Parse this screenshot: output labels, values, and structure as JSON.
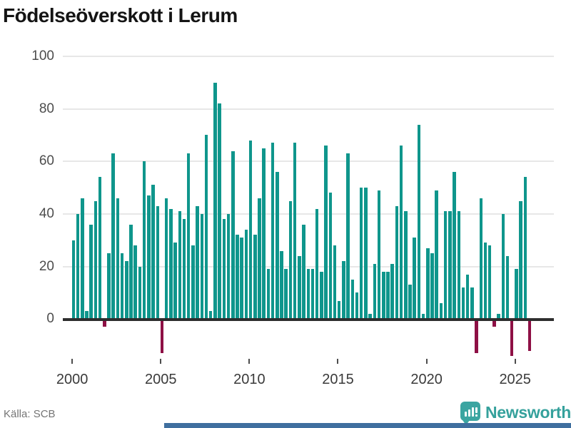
{
  "title": "Födelseöverskott i Lerum",
  "source": {
    "text": "Källa: SCB"
  },
  "brand": {
    "name": "Newsworthy",
    "color": "#35a19c",
    "icon": "bar-chart-pin-icon"
  },
  "colors": {
    "positive_bar": "#0f968c",
    "negative_bar": "#8e1045",
    "axis_line": "#2e2e2e",
    "gridline": "#e7e7e7",
    "bottom_strip": "#3f6f9f"
  },
  "chart_data": {
    "type": "bar",
    "title": "Födelseöverskott i Lerum",
    "xlabel": "",
    "ylabel": "",
    "frequency": "quarterly",
    "start_year": 2000,
    "start_quarter": 1,
    "x_tick_labels": [
      "2000",
      "2005",
      "2010",
      "2015",
      "2020",
      "2025"
    ],
    "y_ticks": [
      0,
      20,
      40,
      60,
      80,
      100
    ],
    "ylim": [
      -20,
      100
    ],
    "grid": true,
    "legend": "none",
    "values": [
      30,
      40,
      46,
      3,
      36,
      45,
      54,
      -3,
      25,
      63,
      46,
      25,
      22,
      36,
      28,
      20,
      60,
      47,
      51,
      43,
      -13,
      46,
      42,
      29,
      41,
      38,
      63,
      28,
      43,
      40,
      70,
      3,
      90,
      82,
      38,
      40,
      64,
      32,
      31,
      34,
      68,
      32,
      46,
      65,
      19,
      67,
      56,
      26,
      19,
      45,
      67,
      24,
      36,
      19,
      19,
      42,
      18,
      66,
      48,
      28,
      7,
      22,
      63,
      15,
      10,
      50,
      50,
      2,
      21,
      49,
      18,
      18,
      21,
      43,
      66,
      41,
      13,
      31,
      74,
      2,
      27,
      25,
      49,
      6,
      41,
      41,
      56,
      41,
      12,
      17,
      12,
      -13,
      46,
      29,
      28,
      -3,
      2,
      40,
      24,
      -14,
      19,
      45,
      54,
      -12
    ]
  }
}
